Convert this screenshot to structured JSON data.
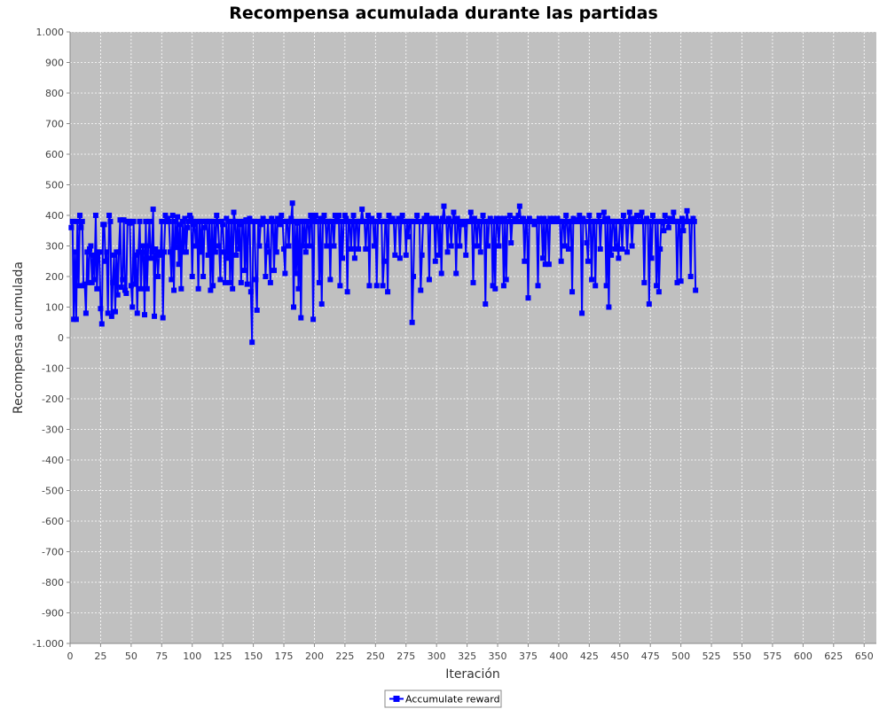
{
  "chart_data": {
    "type": "line",
    "title": "Recompensa acumulada durante las partidas",
    "xlabel": "Iteración",
    "ylabel": "Recompensa acumulada",
    "xlim": [
      0,
      660
    ],
    "ylim": [
      -1000,
      1000
    ],
    "x_ticks": [
      "0",
      "25",
      "50",
      "75",
      "100",
      "125",
      "150",
      "175",
      "200",
      "225",
      "250",
      "275",
      "300",
      "325",
      "350",
      "375",
      "400",
      "425",
      "450",
      "475",
      "500",
      "525",
      "550",
      "575",
      "600",
      "625",
      "650"
    ],
    "y_ticks": [
      "1.000",
      "900",
      "800",
      "700",
      "600",
      "500",
      "400",
      "300",
      "200",
      "100",
      "0",
      "-100",
      "-200",
      "-300",
      "-400",
      "-500",
      "-600",
      "-700",
      "-800",
      "-900",
      "-1.000"
    ],
    "grid": true,
    "legend_position": "bottom-center",
    "series": [
      {
        "name": "Accumulate reward",
        "color": "#0000ff",
        "x_start": 1,
        "x_step": 1,
        "values": [
          360,
          380,
          60,
          280,
          60,
          380,
          170,
          400,
          360,
          380,
          170,
          175,
          80,
          280,
          180,
          290,
          300,
          180,
          270,
          190,
          400,
          160,
          280,
          280,
          95,
          45,
          370,
          370,
          250,
          280,
          80,
          400,
          380,
          70,
          180,
          270,
          85,
          280,
          140,
          280,
          385,
          165,
          190,
          385,
          155,
          145,
          380,
          380,
          375,
          170,
          100,
          380,
          175,
          270,
          80,
          280,
          380,
          160,
          280,
          300,
          75,
          380,
          160,
          300,
          380,
          260,
          280,
          420,
          70,
          290,
          270,
          200,
          280,
          270,
          380,
          65,
          280,
          400,
          380,
          390,
          380,
          280,
          190,
          400,
          155,
          380,
          295,
          395,
          240,
          370,
          160,
          380,
          280,
          390,
          280,
          360,
          380,
          400,
          390,
          200,
          380,
          370,
          300,
          380,
          160,
          380,
          280,
          380,
          200,
          360,
          380,
          380,
          270,
          380,
          155,
          380,
          170,
          380,
          280,
          400,
          380,
          300,
          190,
          380,
          370,
          280,
          180,
          390,
          260,
          380,
          180,
          380,
          160,
          410,
          380,
          270,
          380,
          290,
          370,
          180,
          380,
          380,
          220,
          385,
          175,
          380,
          390,
          150,
          -15,
          380,
          380,
          190,
          90,
          380,
          300,
          370,
          380,
          390,
          380,
          200,
          300,
          380,
          280,
          180,
          390,
          380,
          220,
          380,
          280,
          390,
          380,
          370,
          400,
          380,
          290,
          210,
          380,
          380,
          300,
          380,
          390,
          440,
          100,
          380,
          210,
          375,
          160,
          380,
          65,
          380,
          300,
          380,
          280,
          380,
          380,
          300,
          400,
          390,
          60,
          380,
          400,
          380,
          380,
          180,
          390,
          110,
          380,
          400,
          380,
          300,
          380,
          380,
          190,
          380,
          380,
          300,
          400,
          380,
          390,
          400,
          170,
          380,
          260,
          380,
          400,
          390,
          150,
          380,
          380,
          290,
          380,
          400,
          260,
          380,
          380,
          290,
          380,
          380,
          420,
          380,
          380,
          290,
          380,
          400,
          170,
          380,
          390,
          380,
          300,
          380,
          170,
          380,
          400,
          380,
          380,
          170,
          250,
          380,
          380,
          150,
          400,
          380,
          380,
          390,
          380,
          270,
          380,
          380,
          390,
          260,
          380,
          400,
          380,
          380,
          270,
          380,
          330,
          380,
          380,
          50,
          200,
          380,
          380,
          400,
          380,
          380,
          155,
          270,
          380,
          390,
          380,
          400,
          380,
          190,
          390,
          380,
          380,
          390,
          250,
          390,
          380,
          270,
          380,
          210,
          390,
          430,
          380,
          380,
          280,
          390,
          380,
          300,
          380,
          410,
          380,
          210,
          390,
          380,
          300,
          370,
          380,
          370,
          380,
          270,
          380,
          380,
          380,
          410,
          380,
          180,
          390,
          380,
          300,
          380,
          380,
          280,
          380,
          400,
          380,
          110,
          380,
          300,
          380,
          390,
          380,
          170,
          380,
          160,
          390,
          380,
          300,
          380,
          390,
          380,
          170,
          390,
          190,
          380,
          380,
          400,
          310,
          380,
          380,
          390,
          380,
          380,
          400,
          430,
          380,
          380,
          390,
          250,
          380,
          380,
          130,
          390,
          380,
          380,
          380,
          370,
          380,
          380,
          170,
          390,
          380,
          380,
          260,
          390,
          240,
          380,
          380,
          240,
          390,
          380,
          380,
          390,
          380,
          380,
          390,
          380,
          380,
          250,
          380,
          380,
          300,
          400,
          380,
          290,
          380,
          380,
          150,
          390,
          380,
          380,
          385,
          380,
          400,
          380,
          80,
          390,
          380,
          380,
          310,
          250,
          400,
          380,
          190,
          380,
          380,
          170,
          380,
          380,
          400,
          290,
          380,
          380,
          410,
          380,
          170,
          390,
          100,
          380,
          270,
          380,
          380,
          290,
          380,
          300,
          260,
          380,
          380,
          290,
          400,
          380,
          380,
          280,
          380,
          410,
          380,
          300,
          390,
          380,
          380,
          400,
          400,
          380,
          380,
          410,
          380,
          180,
          380,
          390,
          380,
          110,
          380,
          260,
          400,
          380,
          380,
          170,
          380,
          150,
          290,
          380,
          380,
          350,
          400,
          380,
          380,
          360,
          390,
          380,
          380,
          410,
          380,
          380,
          180,
          380,
          380,
          185,
          390,
          350,
          380,
          380,
          415,
          380,
          380,
          200,
          380,
          390,
          380,
          155
        ]
      }
    ]
  }
}
